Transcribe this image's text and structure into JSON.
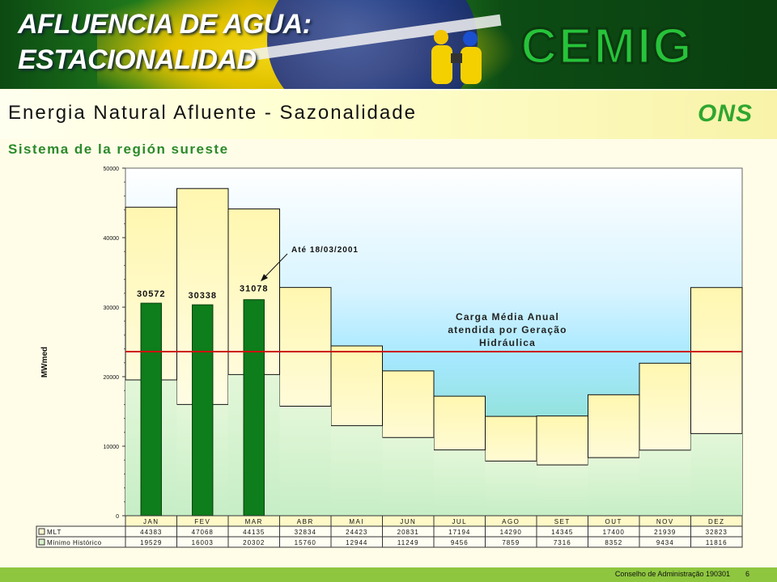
{
  "header": {
    "title_line1": "AFLUENCIA DE AGUA:",
    "title_line2": "ESTACIONALIDAD",
    "logo_text": "CEMIG"
  },
  "subheader": {
    "title": "Energia Natural Afluente - Sazonalidade",
    "ons_logo_text": "ONS"
  },
  "region_title": "Sistema de la región sureste",
  "footer": {
    "text": "Conselho de Administração 190301",
    "page": "6"
  },
  "colors": {
    "green_bar": "#0e7d1b",
    "carga_line": "#cc1111",
    "footer_bg": "#8ec63f"
  },
  "chart_data": {
    "type": "bar",
    "ylabel": "MWmed",
    "ylim": [
      0,
      50000
    ],
    "yticks": [
      "0",
      "10000",
      "20000",
      "30000",
      "40000",
      "50000"
    ],
    "categories": [
      "JAN",
      "FEV",
      "MAR",
      "ABR",
      "MAI",
      "JUN",
      "JUL",
      "AGO",
      "SET",
      "OUT",
      "NOV",
      "DEZ"
    ],
    "series": [
      {
        "name": "MLT",
        "values": [
          44383,
          47068,
          44135,
          32834,
          24423,
          20831,
          17194,
          14290,
          14345,
          17400,
          21939,
          32823
        ]
      },
      {
        "name": "Mínimo Histórico",
        "values": [
          19529,
          16003,
          20302,
          15760,
          12944,
          11249,
          9456,
          7859,
          7316,
          8352,
          9434,
          11816
        ]
      }
    ],
    "table_labels": {
      "mlt": [
        "44383",
        "47068",
        "44135",
        "32834",
        "24423",
        "20831",
        "17194",
        "14290",
        "14345",
        "17400",
        "21939",
        "32823"
      ],
      "min": [
        "19529",
        "16003",
        "20302",
        "15760",
        "12944",
        "11249",
        "9456",
        "7859",
        "7316",
        "8352",
        "9434",
        "11816"
      ]
    },
    "actual": {
      "categories": [
        "JAN",
        "FEV",
        "MAR"
      ],
      "values": [
        30572,
        30338,
        31078
      ],
      "labels": [
        "30572",
        "30338",
        "31078"
      ]
    },
    "carga_line": {
      "value": 23600,
      "label_line1": "Carga Média Anual",
      "label_line2": "atendida por Geração",
      "label_line3": "Hidráulica"
    },
    "annotation": "Até 18/03/2001"
  }
}
